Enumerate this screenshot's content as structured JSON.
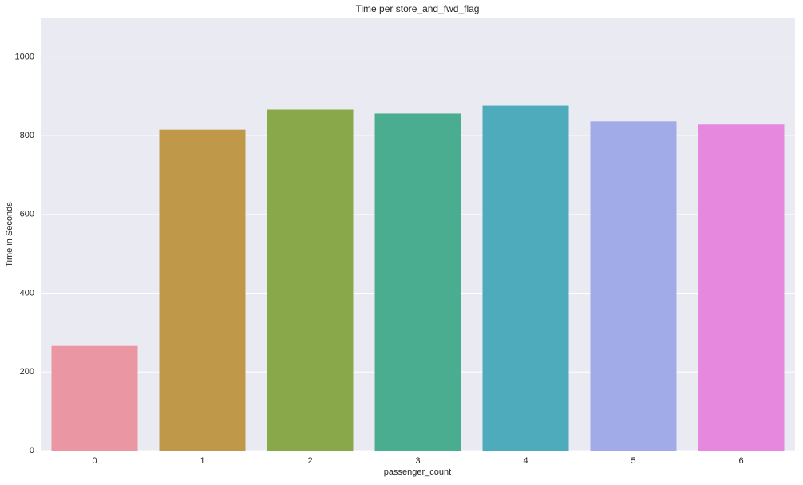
{
  "chart_data": {
    "type": "bar",
    "title": "Time per store_and_fwd_flag",
    "x_label": "passenger_count",
    "y_label": "Time in Seconds",
    "categories": [
      "0",
      "1",
      "2",
      "3",
      "4",
      "5",
      "6"
    ],
    "values": [
      266,
      815,
      866,
      856,
      876,
      836,
      828
    ],
    "colors": [
      "#ea96a3",
      "#c0984a",
      "#89a84a",
      "#4aad8f",
      "#4eabbc",
      "#a1abe8",
      "#e788df"
    ],
    "ylim": [
      0,
      1100
    ],
    "yticks": [
      0,
      200,
      400,
      600,
      800,
      1000
    ],
    "grid": true
  }
}
